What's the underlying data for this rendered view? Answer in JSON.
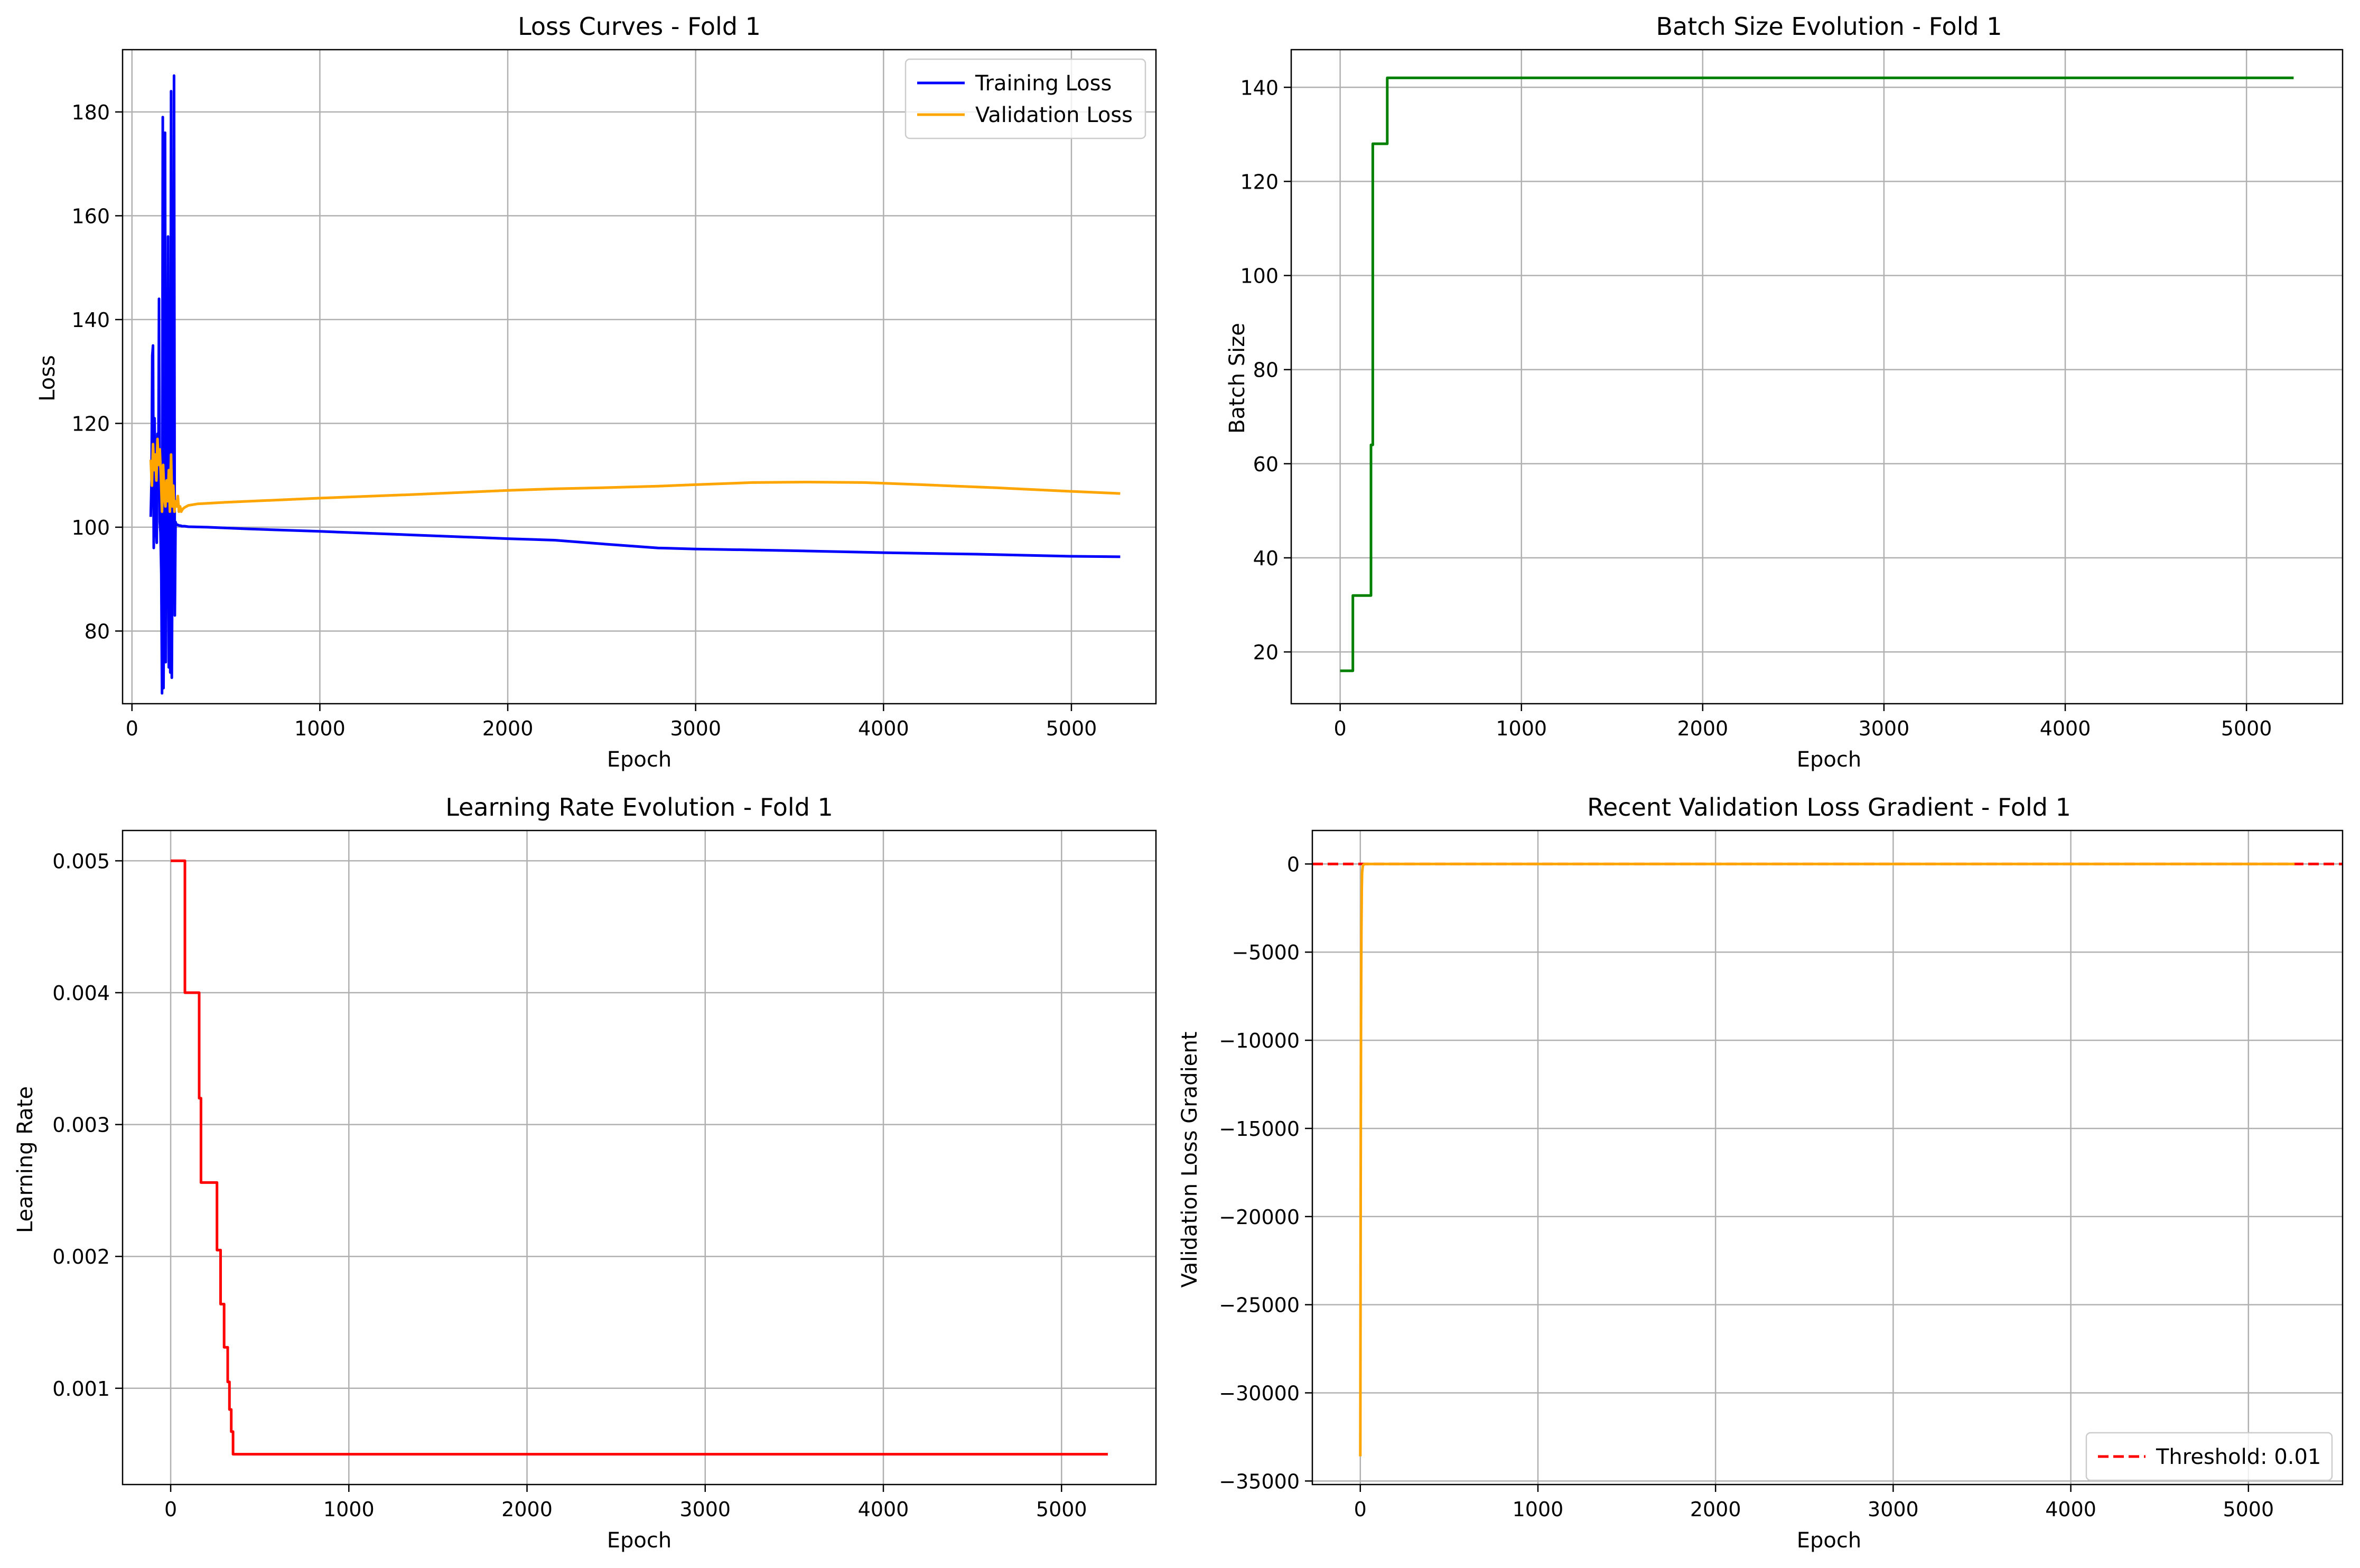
{
  "chart_data": [
    {
      "type": "line",
      "title": "Loss Curves - Fold 1",
      "xlabel": "Epoch",
      "ylabel": "Loss",
      "xlim": [
        -50,
        5450
      ],
      "ylim": [
        66,
        192
      ],
      "xticks": [
        0,
        1000,
        2000,
        3000,
        4000,
        5000
      ],
      "yticks": [
        80,
        100,
        120,
        140,
        160,
        180
      ],
      "grid": true,
      "legend": "top-right",
      "series": [
        {
          "name": "Training Loss",
          "color": "#0000ff",
          "x": [
            100,
            104,
            108,
            112,
            116,
            120,
            124,
            128,
            132,
            136,
            140,
            144,
            148,
            152,
            156,
            160,
            164,
            168,
            172,
            176,
            180,
            184,
            188,
            192,
            196,
            200,
            204,
            208,
            212,
            216,
            220,
            224,
            228,
            232,
            236,
            240,
            244,
            248,
            252,
            256,
            260,
            264,
            270,
            280,
            300,
            400,
            600,
            1000,
            1500,
            2000,
            2250,
            2500,
            2800,
            3000,
            3500,
            4000,
            4500,
            5000,
            5260
          ],
          "y": [
            102,
            109,
            133,
            135,
            96,
            121,
            110,
            100,
            97,
            118,
            106,
            144,
            101,
            99,
            91,
            68,
            179,
            69,
            104,
            176,
            74,
            103,
            101,
            156,
            73,
            102,
            72,
            184,
            71,
            101,
            100,
            187,
            83,
            101,
            100.5,
            100.5,
            100.4,
            100.4,
            100.3,
            100.3,
            100.3,
            100.2,
            100.2,
            100.2,
            100.1,
            100.0,
            99.7,
            99.2,
            98.5,
            97.8,
            97.5,
            96.8,
            96.0,
            95.8,
            95.5,
            95.1,
            94.8,
            94.4,
            94.3
          ]
        },
        {
          "name": "Validation Loss",
          "color": "#ffa500",
          "x": [
            100,
            106,
            112,
            118,
            124,
            130,
            136,
            142,
            148,
            154,
            160,
            166,
            172,
            178,
            184,
            190,
            196,
            202,
            208,
            214,
            220,
            226,
            232,
            238,
            244,
            250,
            256,
            262,
            270,
            280,
            300,
            350,
            500,
            1000,
            1500,
            2000,
            2250,
            2500,
            2800,
            3000,
            3300,
            3600,
            3900,
            4200,
            4600,
            5000,
            5260
          ],
          "y": [
            113,
            108,
            116,
            111,
            114,
            109,
            117,
            112,
            115,
            110,
            103,
            112,
            106,
            104,
            109,
            105,
            111,
            103,
            114,
            104,
            108,
            103,
            105,
            104,
            106,
            103,
            104,
            103,
            103.5,
            103.8,
            104.2,
            104.5,
            104.8,
            105.6,
            106.3,
            107.1,
            107.4,
            107.6,
            107.9,
            108.2,
            108.6,
            108.7,
            108.6,
            108.2,
            107.6,
            106.9,
            106.5
          ]
        }
      ]
    },
    {
      "type": "line",
      "title": "Batch Size Evolution - Fold 1",
      "xlabel": "Epoch",
      "ylabel": "Batch Size",
      "xlim": [
        -270,
        5530
      ],
      "ylim": [
        9,
        148
      ],
      "xticks": [
        0,
        1000,
        2000,
        3000,
        4000,
        5000
      ],
      "yticks": [
        20,
        40,
        60,
        80,
        100,
        120,
        140
      ],
      "grid": true,
      "series": [
        {
          "color": "#008000",
          "step": true,
          "x": [
            0,
            60,
            70,
            160,
            170,
            180,
            260,
            5260
          ],
          "y": [
            16,
            16,
            32,
            32,
            64,
            128,
            142,
            142
          ]
        }
      ]
    },
    {
      "type": "line",
      "title": "Learning Rate Evolution - Fold 1",
      "xlabel": "Epoch",
      "ylabel": "Learning Rate",
      "xlim": [
        -270,
        5530
      ],
      "ylim": [
        0.00027,
        0.00523
      ],
      "xticks": [
        0,
        1000,
        2000,
        3000,
        4000,
        5000
      ],
      "yticks": [
        0.001,
        0.002,
        0.003,
        0.004,
        0.005
      ],
      "ytick_labels": [
        "0.001",
        "0.002",
        "0.003",
        "0.004",
        "0.005"
      ],
      "grid": true,
      "series": [
        {
          "color": "#ff0000",
          "step": true,
          "x": [
            0,
            80,
            160,
            170,
            260,
            280,
            300,
            320,
            330,
            340,
            350,
            5260
          ],
          "y": [
            0.005,
            0.004,
            0.0032,
            0.00256,
            0.002048,
            0.0016384,
            0.00131072,
            0.001048576,
            0.000838861,
            0.000671089,
            0.0005,
            0.0005
          ]
        }
      ]
    },
    {
      "type": "line",
      "title": "Recent Validation Loss Gradient - Fold 1",
      "xlabel": "Epoch",
      "ylabel": "Validation Loss Gradient",
      "xlim": [
        -270,
        5530
      ],
      "ylim": [
        -35200,
        1900
      ],
      "xticks": [
        0,
        1000,
        2000,
        3000,
        4000,
        5000
      ],
      "yticks": [
        0,
        -5000,
        -10000,
        -15000,
        -20000,
        -25000,
        -30000,
        -35000
      ],
      "ytick_labels": [
        "0",
        "−5000",
        "−10000",
        "−15000",
        "−20000",
        "−25000",
        "−30000",
        "−35000"
      ],
      "grid": true,
      "legend": "bottom-right",
      "series": [
        {
          "color": "#ffa500",
          "x": [
            0,
            2,
            4,
            6,
            8,
            10,
            14,
            20,
            30,
            5260
          ],
          "y": [
            -33600,
            -20000,
            -9000,
            -4000,
            -1500,
            -500,
            -100,
            -10,
            0,
            0
          ]
        }
      ],
      "threshold": {
        "name": "Threshold: 0.01",
        "value": 0.01,
        "color": "#ff0000",
        "style": "dashed"
      }
    }
  ]
}
